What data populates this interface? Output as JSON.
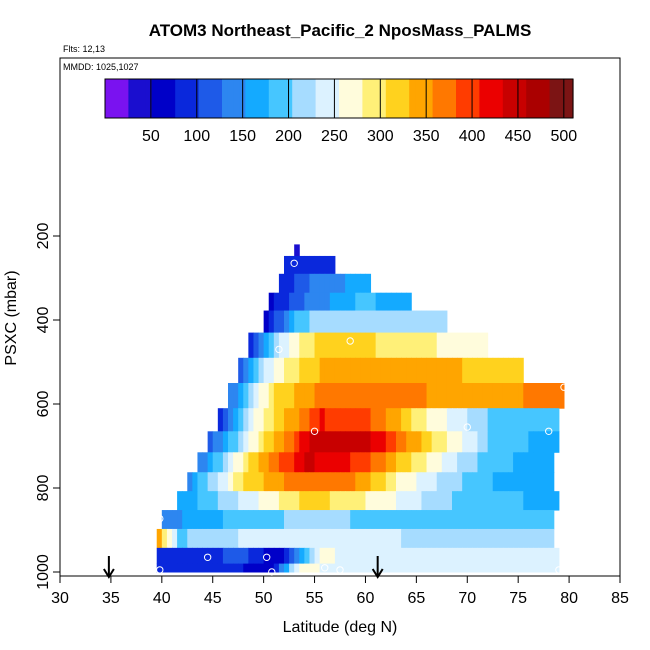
{
  "chart_data": {
    "type": "heatmap",
    "title": "ATOM3 Northeast_Pacific_2 NposMass_PALMS",
    "flights_label": "Flts: 12,13",
    "date_label": "MMDD: 1025,1027",
    "xlabel": "Latitude (deg N)",
    "ylabel": "PSXC (mbar)",
    "xlim": [
      30,
      85
    ],
    "ylim": [
      1000,
      0
    ],
    "x_ticks": [
      30,
      35,
      40,
      45,
      50,
      55,
      60,
      65,
      70,
      75,
      80,
      85
    ],
    "y_ticks": [
      200,
      400,
      600,
      800,
      1000
    ],
    "colorbar": {
      "range": [
        0,
        510
      ],
      "ticks": [
        50,
        100,
        150,
        200,
        250,
        300,
        350,
        400,
        450,
        500
      ],
      "colors": [
        "#7a12f0",
        "#1a0ecf",
        "#0000c8",
        "#0a28dc",
        "#1e5ae8",
        "#2d86f0",
        "#14aaff",
        "#46c6ff",
        "#a6dcff",
        "#dcf2ff",
        "#fffcdc",
        "#fff078",
        "#ffd21e",
        "#ffa500",
        "#ff7800",
        "#ff3c00",
        "#eb0000",
        "#c80000",
        "#aa0000",
        "#7c1414"
      ]
    },
    "layers": [
      {
        "p": 230,
        "x_start": 53.0,
        "x_end": 53.5,
        "profile": [
          [
            0,
            30
          ]
        ]
      },
      {
        "p": 265,
        "x_start": 52.0,
        "x_end": 57.0,
        "profile": [
          [
            0,
            80
          ],
          [
            1,
            100
          ]
        ]
      },
      {
        "p": 315,
        "x_start": 51.5,
        "x_end": 60.5,
        "profile": [
          [
            0,
            80
          ],
          [
            0.3,
            130
          ],
          [
            1,
            170
          ]
        ]
      },
      {
        "p": 355,
        "x_start": 50.5,
        "x_end": 64.5,
        "profile": [
          [
            0,
            70
          ],
          [
            0.2,
            120
          ],
          [
            0.6,
            180
          ],
          [
            1,
            175
          ]
        ]
      },
      {
        "p": 400,
        "x_start": 50.0,
        "x_end": 68.0,
        "profile": [
          [
            0,
            60
          ],
          [
            0.15,
            180
          ],
          [
            0.3,
            225
          ],
          [
            0.7,
            215
          ],
          [
            1,
            210
          ]
        ]
      },
      {
        "p": 460,
        "x_start": 48.5,
        "x_end": 72.0,
        "profile": [
          [
            0,
            100
          ],
          [
            0.12,
            240
          ],
          [
            0.3,
            325
          ],
          [
            0.6,
            300
          ],
          [
            1,
            255
          ]
        ]
      },
      {
        "p": 520,
        "x_start": 47.5,
        "x_end": 75.5,
        "profile": [
          [
            0,
            120
          ],
          [
            0.12,
            270
          ],
          [
            0.3,
            340
          ],
          [
            0.5,
            350
          ],
          [
            0.8,
            330
          ],
          [
            1,
            320
          ]
        ]
      },
      {
        "p": 580,
        "x_start": 46.5,
        "x_end": 79.5,
        "profile": [
          [
            0,
            130
          ],
          [
            0.12,
            300
          ],
          [
            0.3,
            380
          ],
          [
            0.5,
            360
          ],
          [
            0.8,
            350
          ],
          [
            1,
            370
          ]
        ]
      },
      {
        "p": 640,
        "x_start": 45.5,
        "x_end": 79.0,
        "profile": [
          [
            0,
            100
          ],
          [
            0.12,
            280
          ],
          [
            0.3,
            410
          ],
          [
            0.45,
            380
          ],
          [
            0.6,
            280
          ],
          [
            0.85,
            180
          ],
          [
            1,
            190
          ]
        ]
      },
      {
        "p": 690,
        "x_start": 44.5,
        "x_end": 79.0,
        "profile": [
          [
            0,
            110
          ],
          [
            0.15,
            300
          ],
          [
            0.3,
            450
          ],
          [
            0.45,
            440
          ],
          [
            0.6,
            330
          ],
          [
            0.8,
            200
          ],
          [
            1,
            160
          ]
        ]
      },
      {
        "p": 740,
        "x_start": 43.5,
        "x_end": 78.5,
        "profile": [
          [
            0,
            130
          ],
          [
            0.15,
            320
          ],
          [
            0.3,
            440
          ],
          [
            0.45,
            400
          ],
          [
            0.6,
            300
          ],
          [
            0.8,
            190
          ],
          [
            1,
            160
          ]
        ]
      },
      {
        "p": 785,
        "x_start": 42.5,
        "x_end": 78.5,
        "profile": [
          [
            0,
            150
          ],
          [
            0.15,
            310
          ],
          [
            0.3,
            380
          ],
          [
            0.45,
            360
          ],
          [
            0.6,
            260
          ],
          [
            0.8,
            180
          ],
          [
            1,
            170
          ]
        ]
      },
      {
        "p": 830,
        "x_start": 41.5,
        "x_end": 79.0,
        "profile": [
          [
            0,
            160
          ],
          [
            0.2,
            250
          ],
          [
            0.35,
            320
          ],
          [
            0.55,
            260
          ],
          [
            0.75,
            190
          ],
          [
            1,
            170
          ]
        ]
      },
      {
        "p": 875,
        "x_start": 40.0,
        "x_end": 78.5,
        "profile": [
          [
            0,
            140
          ],
          [
            0.15,
            180
          ],
          [
            0.35,
            210
          ],
          [
            0.55,
            200
          ],
          [
            0.8,
            190
          ],
          [
            1,
            180
          ]
        ]
      },
      {
        "p": 920,
        "x_start": 39.5,
        "x_end": 78.5,
        "profile": [
          [
            0,
            340
          ],
          [
            0.05,
            200
          ],
          [
            0.2,
            230
          ],
          [
            0.4,
            250
          ],
          [
            0.7,
            220
          ],
          [
            1,
            210
          ]
        ]
      },
      {
        "p": 965,
        "x_start": 39.5,
        "x_end": 79.0,
        "profile": [
          [
            0,
            90
          ],
          [
            0.1,
            80
          ],
          [
            0.2,
            120
          ],
          [
            0.3,
            50
          ],
          [
            0.4,
            260
          ],
          [
            0.55,
            240
          ],
          [
            0.8,
            240
          ],
          [
            1,
            235
          ]
        ]
      },
      {
        "p": 995,
        "x_start": 39.5,
        "x_end": 79.0,
        "profile": [
          [
            0,
            100
          ],
          [
            0.15,
            90
          ],
          [
            0.28,
            60
          ],
          [
            0.35,
            280
          ],
          [
            0.45,
            230
          ],
          [
            0.6,
            235
          ],
          [
            1,
            230
          ]
        ]
      }
    ],
    "sample_points": [
      {
        "lat": 53.0,
        "p": 265
      },
      {
        "lat": 51.5,
        "p": 470
      },
      {
        "lat": 58.5,
        "p": 450
      },
      {
        "lat": 55.0,
        "p": 665
      },
      {
        "lat": 70.0,
        "p": 655
      },
      {
        "lat": 78.0,
        "p": 665
      },
      {
        "lat": 79.5,
        "p": 560
      },
      {
        "lat": 39.8,
        "p": 873
      },
      {
        "lat": 44.5,
        "p": 965
      },
      {
        "lat": 50.3,
        "p": 965
      },
      {
        "lat": 39.8,
        "p": 995
      },
      {
        "lat": 50.8,
        "p": 1000
      },
      {
        "lat": 56.0,
        "p": 990
      },
      {
        "lat": 57.5,
        "p": 995
      },
      {
        "lat": 79.0,
        "p": 995
      }
    ],
    "arrows": [
      {
        "lat": 34.8
      },
      {
        "lat": 61.2
      }
    ]
  }
}
